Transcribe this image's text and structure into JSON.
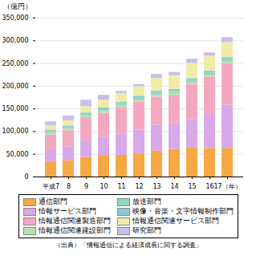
{
  "chart_data": {
    "type": "bar",
    "stacked": true,
    "ylabel": "（億円）",
    "source": "（出典）「情報通信による経済成長に関する調査」",
    "categories": [
      "平成7",
      "8",
      "9",
      "10",
      "11",
      "12",
      "13",
      "14",
      "15",
      "16",
      "17（年）"
    ],
    "series": [
      {
        "name": "通信部門",
        "color": "#F5A843",
        "values": [
          32000,
          36000,
          43000,
          46000,
          48000,
          51000,
          57000,
          61000,
          64000,
          63000,
          63000
        ]
      },
      {
        "name": "情報サービス部門",
        "color": "#D8A8E8",
        "values": [
          28000,
          30000,
          38000,
          42000,
          47000,
          52000,
          57000,
          57000,
          62000,
          75000,
          95000
        ]
      },
      {
        "name": "情報通信関連製造部門",
        "color": "#F4A8C0",
        "values": [
          33000,
          36000,
          48000,
          52000,
          58000,
          62000,
          62000,
          62000,
          78000,
          82000,
          92000
        ]
      },
      {
        "name": "情報通信関連建設部門",
        "color": "#B8E0B0",
        "values": [
          4500,
          4500,
          4500,
          4500,
          4500,
          4500,
          4500,
          4500,
          4500,
          4500,
          4500
        ]
      },
      {
        "name": "放送部門",
        "color": "#90D8B8",
        "values": [
          3500,
          3500,
          4000,
          4000,
          4000,
          4000,
          4000,
          4000,
          4000,
          4000,
          4000
        ]
      },
      {
        "name": "映像・音楽・文字情報制作部門",
        "color": "#88CCD8",
        "values": [
          2500,
          2500,
          3500,
          3500,
          3500,
          4500,
          4500,
          4500,
          4500,
          4500,
          4500
        ]
      },
      {
        "name": "情報通信関連サービス部門",
        "color": "#F0ECA8",
        "values": [
          9000,
          11000,
          14000,
          17000,
          19000,
          21000,
          28000,
          30000,
          33000,
          33000,
          33000
        ]
      },
      {
        "name": "研究部門",
        "color": "#C8C0E8",
        "values": [
          9000,
          11000,
          14000,
          11000,
          4500,
          4500,
          9000,
          7500,
          9500,
          7500,
          11000
        ]
      }
    ],
    "ylim": [
      0,
      350000
    ],
    "yticks": [
      0,
      {
        "value": 50000,
        "label": "50,000"
      },
      {
        "value": 100000,
        "label": "100,000"
      },
      {
        "value": 150000,
        "label": "150,000"
      },
      {
        "value": 200000,
        "label": "200,000"
      },
      {
        "value": 250000,
        "label": "250,000"
      },
      {
        "value": 300000,
        "label": "300,000"
      },
      {
        "value": 350000,
        "label": "350,000"
      }
    ],
    "grid": true,
    "legend": "bottom"
  }
}
